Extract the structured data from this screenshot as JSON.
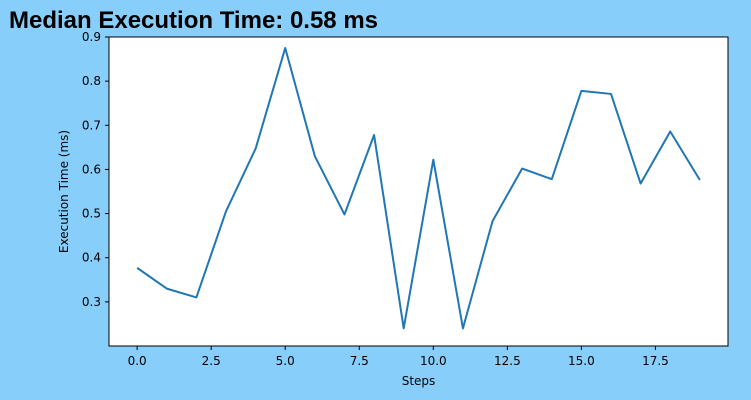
{
  "title": "Median Execution Time: 0.58 ms",
  "colors": {
    "background": "#87CEFA",
    "plot_area": "#FFFFFF",
    "line": "#1F77B4"
  },
  "chart_data": {
    "type": "line",
    "title": "Median Execution Time: 0.58 ms",
    "xlabel": "Steps",
    "ylabel": "Execution Time (ms)",
    "xlim": [
      -0.95,
      19.95
    ],
    "ylim": [
      0.2,
      0.9
    ],
    "xticks": [
      0.0,
      2.5,
      5.0,
      7.5,
      10.0,
      12.5,
      15.0,
      17.5
    ],
    "xtick_labels": [
      "0.0",
      "2.5",
      "5.0",
      "7.5",
      "10.0",
      "12.5",
      "15.0",
      "17.5"
    ],
    "yticks": [
      0.3,
      0.4,
      0.5,
      0.6,
      0.7,
      0.8,
      0.9
    ],
    "ytick_labels": [
      "0.3",
      "0.4",
      "0.5",
      "0.6",
      "0.7",
      "0.8",
      "0.9"
    ],
    "grid": false,
    "legend": "none",
    "series": [
      {
        "color": "#1F77B4",
        "x": [
          0,
          1,
          2,
          3,
          4,
          5,
          6,
          7,
          8,
          9,
          10,
          11,
          12,
          13,
          14,
          15,
          16,
          17,
          18,
          19
        ],
        "y": [
          0.377,
          0.33,
          0.31,
          0.505,
          0.647,
          0.875,
          0.63,
          0.498,
          0.678,
          0.24,
          0.622,
          0.24,
          0.483,
          0.602,
          0.578,
          0.778,
          0.771,
          0.568,
          0.686,
          0.576
        ]
      }
    ]
  }
}
